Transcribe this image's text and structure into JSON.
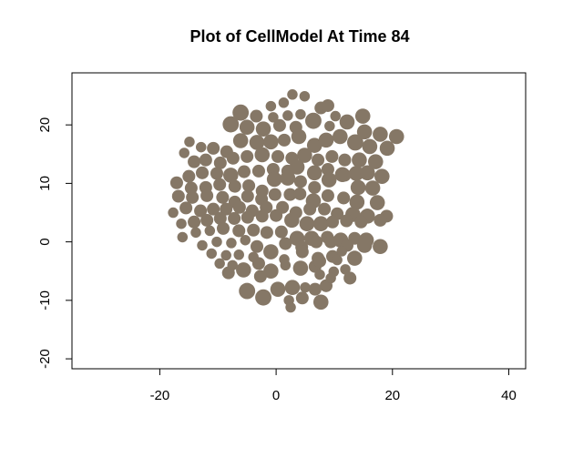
{
  "chart_data": {
    "type": "scatter",
    "title": "Plot of CellModel At Time 84",
    "color": "#857766",
    "xlim": [
      -35.1,
      42.9
    ],
    "ylim": [
      -21.7,
      28.9
    ],
    "xticks": [
      -20,
      0,
      20,
      40
    ],
    "yticks": [
      -20,
      -10,
      0,
      10,
      20
    ],
    "grid": false,
    "x": [
      2.8,
      4.9,
      -0.9,
      1.3,
      -6.1,
      -3.4,
      -0.5,
      2.0,
      4.2,
      6.4,
      7.7,
      8.9,
      10.2,
      12.2,
      14.9,
      -7.8,
      -5.0,
      -2.2,
      0.6,
      3.4,
      9.2,
      -14.9,
      -12.9,
      -10.8,
      -8.5,
      -6.1,
      -3.3,
      -0.9,
      1.4,
      3.9,
      6.6,
      8.6,
      11.0,
      13.6,
      16.1,
      15.2,
      17.9,
      19.1,
      20.7,
      -15.8,
      -14.1,
      -12.1,
      -9.6,
      -7.4,
      -5.0,
      -2.4,
      0.3,
      2.7,
      4.9,
      7.2,
      9.6,
      11.8,
      14.3,
      17.1,
      -15.0,
      -12.7,
      -10.2,
      -7.8,
      -5.5,
      -3.0,
      -0.5,
      2.0,
      3.6,
      6.6,
      8.9,
      11.4,
      13.8,
      15.7,
      18.2,
      -17.1,
      -14.6,
      -12.1,
      -9.7,
      -7.1,
      -4.7,
      -2.4,
      -0.3,
      2.0,
      4.2,
      6.6,
      9.1,
      11.8,
      14.1,
      16.6,
      -16.8,
      -14.4,
      -11.9,
      -9.2,
      -7.1,
      -4.9,
      -2.5,
      -0.2,
      2.4,
      4.1,
      6.4,
      8.9,
      11.6,
      13.9,
      17.4,
      -15.5,
      -13.0,
      -10.8,
      -8.6,
      -6.3,
      -4.1,
      -1.7,
      1.1,
      3.4,
      5.8,
      8.3,
      10.5,
      13.2,
      15.7,
      19.0,
      -17.7,
      -16.3,
      -14.1,
      -11.9,
      -9.6,
      -7.2,
      -4.9,
      -2.4,
      0,
      2.7,
      5.3,
      7.7,
      9.7,
      12.1,
      14.6,
      17.9,
      -16.1,
      -13.8,
      -11.4,
      -9.1,
      -6.4,
      -3.9,
      -1.6,
      0.9,
      3.6,
      6.1,
      8.8,
      11.1,
      13.5,
      15.5,
      -12.7,
      -10.2,
      -7.7,
      -5.3,
      -3.3,
      -0.9,
      1.6,
      4.4,
      6.9,
      9.4,
      12.2,
      15.2,
      17.9,
      -11.1,
      -8.6,
      -6.4,
      -3.9,
      -1.1,
      1.4,
      4.5,
      7.2,
      9.7,
      11.3,
      13.5,
      -9.7,
      -7.5,
      -5.6,
      -3.0,
      -0.9,
      1.6,
      4.2,
      6.7,
      7.5,
      10.5,
      -8.2,
      -2.7,
      7.5,
      9.9,
      11.9,
      12.7,
      -5.0,
      -2.2,
      0.3,
      2.8,
      5.0,
      6.7,
      8.6,
      9.4,
      2.2,
      4.5,
      7.7,
      2.5
    ],
    "values": [
      25.2,
      24.9,
      23.2,
      23.8,
      22.1,
      21.5,
      21.3,
      21.6,
      21.8,
      20.7,
      22.9,
      23.3,
      21.5,
      20.5,
      21.5,
      20.1,
      19.6,
      19.3,
      19.9,
      19.6,
      19.8,
      17.1,
      16.2,
      16.0,
      15.4,
      17.3,
      17.0,
      17.1,
      17.4,
      18.0,
      16.5,
      17.4,
      18.0,
      17.0,
      16.3,
      18.8,
      18.4,
      16.0,
      18.0,
      15.2,
      13.7,
      14.0,
      13.5,
      14.3,
      14.6,
      14.9,
      14.6,
      14.3,
      14.8,
      14.0,
      14.6,
      14.0,
      14.0,
      13.7,
      11.2,
      11.8,
      11.7,
      11.4,
      12.0,
      12.1,
      12.4,
      12.1,
      12.8,
      11.8,
      12.4,
      11.5,
      11.7,
      11.8,
      11.2,
      10.1,
      9.2,
      9.3,
      9.8,
      9.5,
      9.6,
      8.7,
      10.7,
      10.9,
      10.3,
      9.3,
      10.6,
      11.4,
      9.3,
      9.2,
      7.8,
      7.6,
      7.9,
      7.6,
      6.8,
      7.8,
      7.3,
      8.1,
      8.1,
      8.2,
      7.0,
      7.9,
      7.5,
      6.8,
      6.7,
      5.8,
      5.3,
      5.6,
      5.6,
      5.9,
      5.3,
      5.9,
      5.9,
      5.0,
      5.6,
      5.6,
      4.8,
      4.7,
      4.4,
      4.4,
      5.0,
      3.1,
      3.4,
      3.7,
      4.0,
      4.0,
      4.2,
      4.4,
      4.5,
      3.7,
      3.1,
      3.1,
      3.4,
      3.6,
      3.4,
      3.7,
      0.8,
      1.6,
      1.9,
      2.3,
      1.9,
      2.0,
      1.6,
      1.7,
      0.6,
      0.6,
      0.8,
      0.3,
      0.6,
      0.3,
      -0.6,
      0,
      -0.2,
      0.3,
      -0.8,
      -1.7,
      -0.3,
      -0.9,
      0,
      0,
      -0.6,
      -0.6,
      -0.8,
      -2.0,
      -2.3,
      -2.2,
      -2.6,
      -1.9,
      -3.0,
      -1.7,
      -2.8,
      -2.5,
      -1.6,
      -2.8,
      -3.7,
      -4.0,
      -4.8,
      -3.7,
      -5.0,
      -4.0,
      -4.5,
      -4.2,
      -3.3,
      -3.1,
      -5.3,
      -5.9,
      -5.6,
      -5.1,
      -4.7,
      -6.2,
      -8.4,
      -9.5,
      -8.1,
      -7.8,
      -7.8,
      -8.1,
      -7.5,
      -6.2,
      -10.0,
      -9.6,
      -10.3,
      -11.2
    ],
    "sizes": [
      0.9,
      0.9,
      0.9,
      0.9,
      1.4,
      1.1,
      0.9,
      0.9,
      0.9,
      1.4,
      1.1,
      1.1,
      0.9,
      1.3,
      1.3,
      1.4,
      1.3,
      1.3,
      1.1,
      1.1,
      0.9,
      0.9,
      0.9,
      1.1,
      1.1,
      1.3,
      1.3,
      1.3,
      1.1,
      1.3,
      1.3,
      1.3,
      1.3,
      1.4,
      1.3,
      1.3,
      1.3,
      1.3,
      1.3,
      0.9,
      1.1,
      1.1,
      1.1,
      1.1,
      1.1,
      1.3,
      1.1,
      1.1,
      1.3,
      1.1,
      1.1,
      1.1,
      1.3,
      1.3,
      1.1,
      1.1,
      1.1,
      1.3,
      1.1,
      1.1,
      1.1,
      1.1,
      1.3,
      1.3,
      1.1,
      1.3,
      1.3,
      1.3,
      1.3,
      1.1,
      1.1,
      1.1,
      1.1,
      1.1,
      1.1,
      1.1,
      1.3,
      1.3,
      1.1,
      1.1,
      1.3,
      1.1,
      1.3,
      1.3,
      1.1,
      1.1,
      1.1,
      1.1,
      1.1,
      1.1,
      1.1,
      1.1,
      1.1,
      1.1,
      1.3,
      1.1,
      1.1,
      1.3,
      1.3,
      1.1,
      1.1,
      1.1,
      1.1,
      1.1,
      1.1,
      1.1,
      1.1,
      1.1,
      1.1,
      1.1,
      1.1,
      1.3,
      1.3,
      1.1,
      0.9,
      0.9,
      1.1,
      1.1,
      1.1,
      1.1,
      1.1,
      1.1,
      1.1,
      1.3,
      1.3,
      1.3,
      1.1,
      1.1,
      1.1,
      1.1,
      0.9,
      0.9,
      0.9,
      1.1,
      1.1,
      1.1,
      1.1,
      1.1,
      1.3,
      1.3,
      1.1,
      1.3,
      1.1,
      1.3,
      0.9,
      0.9,
      0.9,
      0.9,
      1.1,
      1.3,
      1.1,
      1.1,
      1.1,
      1.1,
      1.1,
      1.3,
      1.3,
      0.9,
      0.9,
      0.9,
      0.9,
      0.9,
      0.9,
      1.1,
      1.1,
      1.1,
      0.9,
      1.3,
      0.9,
      0.9,
      1.3,
      1.1,
      1.3,
      0.9,
      1.3,
      1.1,
      1.1,
      0.9,
      1.1,
      1.1,
      0.9,
      0.9,
      0.9,
      1.1,
      1.4,
      1.4,
      1.3,
      1.3,
      0.9,
      1.1,
      1.1,
      0.9,
      0.9,
      1.1,
      1.3,
      0.9
    ]
  }
}
